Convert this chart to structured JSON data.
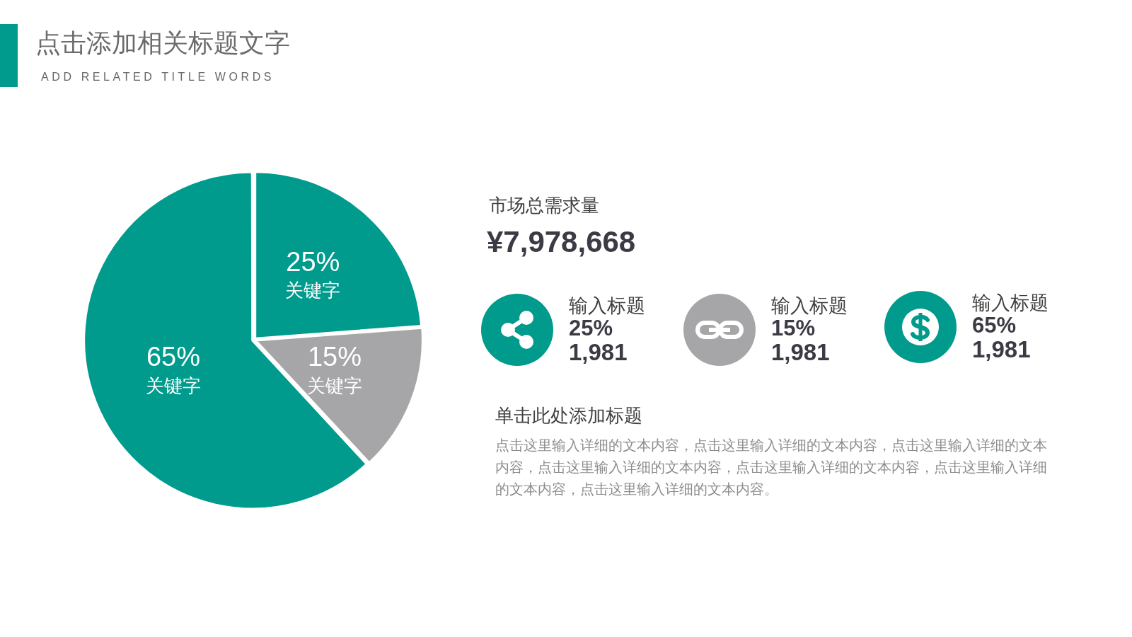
{
  "chart_data": [
    {
      "type": "pie",
      "title": "点击添加相关标题文字",
      "subtitle": "ADD RELATED TITLE WORDS",
      "categories": [
        "关键字",
        "关键字",
        "关键字"
      ],
      "values": [
        25,
        15,
        65
      ],
      "colors": [
        "#009b8c",
        "#a6a6a8",
        "#009b8c"
      ],
      "value_labels": [
        "25%",
        "15%",
        "65%"
      ]
    },
    {
      "type": "other",
      "title": "市场总需求量",
      "subtitle": "¥7,978,668",
      "categories": [
        "输入标题",
        "输入标题",
        "输入标题"
      ],
      "colors": [
        "#009b8c",
        "#a6a6a8",
        "#009b8c"
      ],
      "annotations": [
        "25%",
        "1,981",
        "15%",
        "1,981",
        "65%",
        "1,981",
        "单击此处添加标题",
        "点击这里输入详细的文本内容，点击这里输入详细的文本内容，点击这里输入详细的文本内容，点击这里输入详细的文本内容，点击这里输入详细的文本内容，点击这里输入详细的文本内容，点击这里输入详细的文本内容。"
      ]
    }
  ]
}
